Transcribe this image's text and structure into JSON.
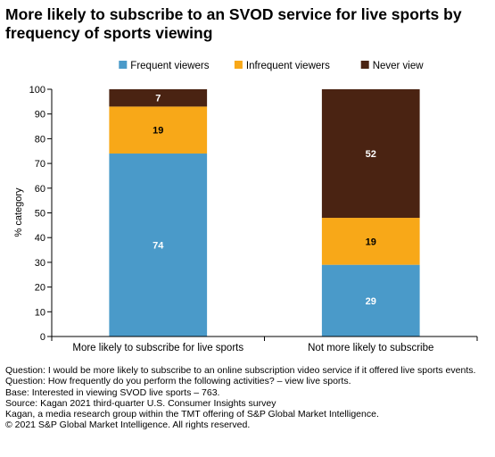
{
  "title": "More likely to subscribe to an SVOD service for live sports by frequency of sports viewing",
  "chart_data": {
    "type": "bar",
    "stacked": true,
    "categories": [
      "More likely to subscribe for live sports",
      "Not more likely to subscribe"
    ],
    "series": [
      {
        "name": "Frequent viewers",
        "color": "#4a9ac9",
        "values": [
          74,
          29
        ]
      },
      {
        "name": "Infrequent viewers",
        "color": "#f8a818",
        "values": [
          19,
          19
        ]
      },
      {
        "name": "Never view",
        "color": "#4a2312",
        "values": [
          7,
          52
        ]
      }
    ],
    "ylabel": "% category",
    "ylim": [
      0,
      100
    ],
    "yticks": [
      0,
      10,
      20,
      30,
      40,
      50,
      60,
      70,
      80,
      90,
      100
    ],
    "legend_position": "top",
    "grid": false
  },
  "notes": {
    "question": "Question: I would be more likely to subscribe to an online subscription video service if it offered live sports events. Question:  How frequently do you perform the following activities? – view live sports.",
    "base": "Base: Interested in viewing SVOD live sports – 763.",
    "source": "Source: Kagan 2021 third-quarter U.S. Consumer Insights survey",
    "kagan": "Kagan, a media research group within the TMT offering of S&P Global Market Intelligence.",
    "copyright": "© 2021 S&P Global Market Intelligence.  All rights reserved."
  }
}
